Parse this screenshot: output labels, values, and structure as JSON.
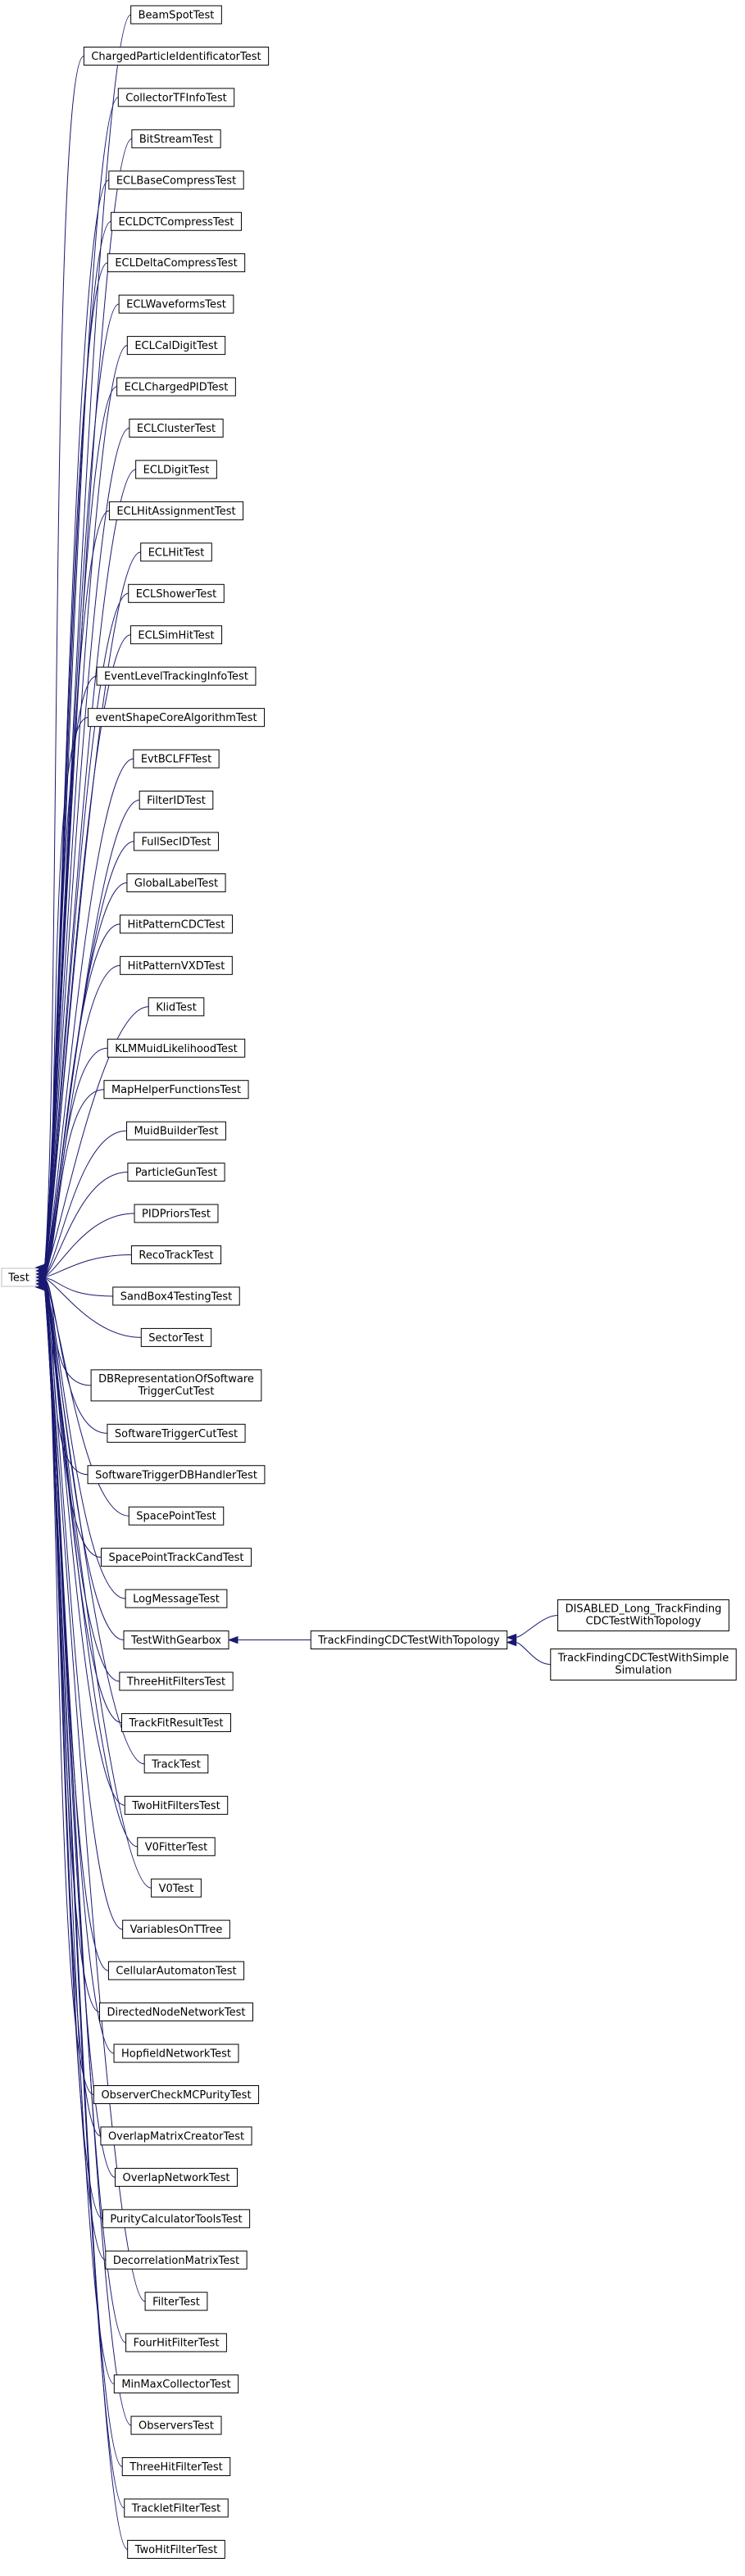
{
  "root": {
    "label": "Test"
  },
  "children": [
    {
      "label": "BeamSpotTest"
    },
    {
      "label": "ChargedParticleIdentificatorTest"
    },
    {
      "label": "CollectorTFInfoTest"
    },
    {
      "label": "BitStreamTest"
    },
    {
      "label": "ECLBaseCompressTest"
    },
    {
      "label": "ECLDCTCompressTest"
    },
    {
      "label": "ECLDeltaCompressTest"
    },
    {
      "label": "ECLWaveformsTest"
    },
    {
      "label": "ECLCalDigitTest"
    },
    {
      "label": "ECLChargedPIDTest"
    },
    {
      "label": "ECLClusterTest"
    },
    {
      "label": "ECLDigitTest"
    },
    {
      "label": "ECLHitAssignmentTest"
    },
    {
      "label": "ECLHitTest"
    },
    {
      "label": "ECLShowerTest"
    },
    {
      "label": "ECLSimHitTest"
    },
    {
      "label": "EventLevelTrackingInfoTest"
    },
    {
      "label": "eventShapeCoreAlgorithmTest"
    },
    {
      "label": "EvtBCLFFTest"
    },
    {
      "label": "FilterIDTest"
    },
    {
      "label": "FullSecIDTest"
    },
    {
      "label": "GlobalLabelTest"
    },
    {
      "label": "HitPatternCDCTest"
    },
    {
      "label": "HitPatternVXDTest"
    },
    {
      "label": "KlidTest"
    },
    {
      "label": "KLMMuidLikelihoodTest"
    },
    {
      "label": "MapHelperFunctionsTest"
    },
    {
      "label": "MuidBuilderTest"
    },
    {
      "label": "ParticleGunTest"
    },
    {
      "label": "PIDPriorsTest"
    },
    {
      "label": "RecoTrackTest"
    },
    {
      "label": "SandBox4TestingTest"
    },
    {
      "label": "SectorTest"
    },
    {
      "label": "DBRepresentationOfSoftware",
      "label2": "TriggerCutTest"
    },
    {
      "label": "SoftwareTriggerCutTest"
    },
    {
      "label": "SoftwareTriggerDBHandlerTest"
    },
    {
      "label": "SpacePointTest"
    },
    {
      "label": "SpacePointTrackCandTest"
    },
    {
      "label": "LogMessageTest"
    },
    {
      "label": "TestWithGearbox"
    },
    {
      "label": "ThreeHitFiltersTest"
    },
    {
      "label": "TrackFitResultTest"
    },
    {
      "label": "TrackTest"
    },
    {
      "label": "TwoHitFiltersTest"
    },
    {
      "label": "V0FitterTest"
    },
    {
      "label": "V0Test"
    },
    {
      "label": "VariablesOnTTree"
    },
    {
      "label": "CellularAutomatonTest"
    },
    {
      "label": "DirectedNodeNetworkTest"
    },
    {
      "label": "HopfieldNetworkTest"
    },
    {
      "label": "ObserverCheckMCPurityTest"
    },
    {
      "label": "OverlapMatrixCreatorTest"
    },
    {
      "label": "OverlapNetworkTest"
    },
    {
      "label": "PurityCalculatorToolsTest"
    },
    {
      "label": "DecorrelationMatrixTest"
    },
    {
      "label": "FilterTest"
    },
    {
      "label": "FourHitFilterTest"
    },
    {
      "label": "MinMaxCollectorTest"
    },
    {
      "label": "ObserversTest"
    },
    {
      "label": "ThreeHitFilterTest"
    },
    {
      "label": "TrackletFilterTest"
    },
    {
      "label": "TwoHitFilterTest"
    }
  ],
  "gearbox_child": {
    "label": "TrackFindingCDCTestWithTopology"
  },
  "topology_children": [
    {
      "label": "DISABLED_Long_TrackFinding",
      "label2": "CDCTestWithTopology"
    },
    {
      "label": "TrackFindingCDCTestWithSimple",
      "label2": "Simulation"
    }
  ],
  "colors": {
    "edge": "#191970",
    "node_border": "#000000",
    "root_border": "#bfbfbf",
    "background": "#ffffff"
  }
}
